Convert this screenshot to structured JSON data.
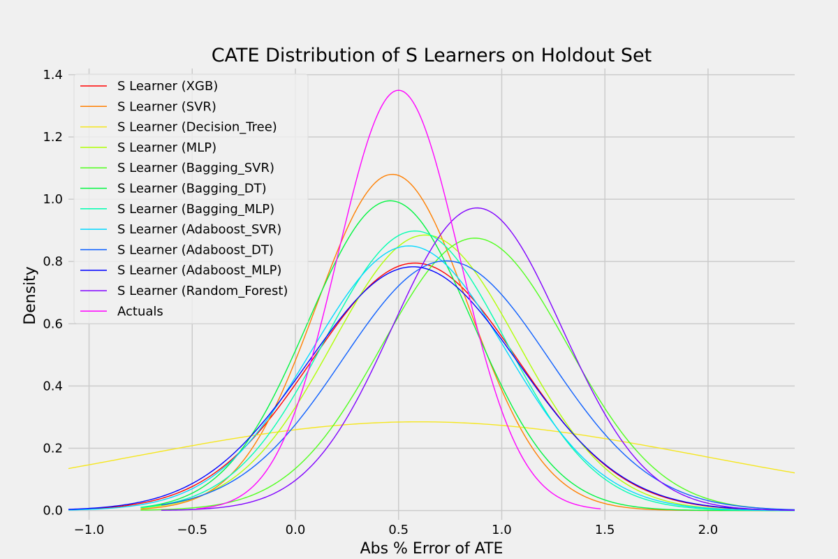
{
  "chart_data": {
    "type": "line",
    "title": "CATE Distribution of S Learners on Holdout Set",
    "xlabel": "Abs % Error of ATE",
    "ylabel": "Density",
    "xlim": [
      -1.1,
      2.42
    ],
    "ylim": [
      -0.03,
      1.42
    ],
    "xticks": [
      -1.0,
      -0.5,
      0.0,
      0.5,
      1.0,
      1.5,
      2.0
    ],
    "xtick_labels": [
      "−1.0",
      "−0.5",
      "0.0",
      "0.5",
      "1.0",
      "1.5",
      "2.0"
    ],
    "yticks": [
      0.0,
      0.2,
      0.4,
      0.6,
      0.8,
      1.0,
      1.2,
      1.4
    ],
    "ytick_labels": [
      "0.0",
      "0.2",
      "0.4",
      "0.6",
      "0.8",
      "1.0",
      "1.2",
      "1.4"
    ],
    "grid": true,
    "legend_position": "upper-left",
    "series": [
      {
        "name": "S Learner (XGB)",
        "color": "#ff0000",
        "curve": "gaussian",
        "mean": 0.58,
        "std": 0.5,
        "peak": 0.795,
        "x_range": [
          -1.1,
          2.42
        ]
      },
      {
        "name": "S Learner (SVR)",
        "color": "#ff7f00",
        "curve": "gaussian",
        "mean": 0.47,
        "std": 0.37,
        "peak": 1.08,
        "x_range": [
          -0.75,
          2.42
        ]
      },
      {
        "name": "S Learner (Decision_Tree)",
        "color": "#f5e61e",
        "curve": "gaussian",
        "mean": 0.6,
        "std": 1.39,
        "peak": 0.285,
        "x_range": [
          -1.1,
          2.42
        ]
      },
      {
        "name": "S Learner (MLP)",
        "color": "#b0ff05",
        "curve": "gaussian",
        "mean": 0.63,
        "std": 0.45,
        "peak": 0.885,
        "x_range": [
          -0.75,
          2.42
        ]
      },
      {
        "name": "S Learner (Bagging_SVR)",
        "color": "#4fff1c",
        "curve": "gaussian",
        "mean": 0.87,
        "std": 0.45,
        "peak": 0.875,
        "x_range": [
          -0.75,
          2.42
        ]
      },
      {
        "name": "S Learner (Bagging_DT)",
        "color": "#00f540",
        "curve": "gaussian",
        "mean": 0.46,
        "std": 0.4,
        "peak": 0.995,
        "x_range": [
          -0.75,
          2.42
        ]
      },
      {
        "name": "S Learner (Bagging_MLP)",
        "color": "#00ffb0",
        "curve": "gaussian",
        "mean": 0.58,
        "std": 0.44,
        "peak": 0.898,
        "x_range": [
          -0.75,
          2.42
        ]
      },
      {
        "name": "S Learner (Adaboost_SVR)",
        "color": "#00d8ff",
        "curve": "gaussian",
        "mean": 0.55,
        "std": 0.47,
        "peak": 0.85,
        "x_range": [
          -1.1,
          2.42
        ]
      },
      {
        "name": "S Learner (Adaboost_DT)",
        "color": "#0d5fff",
        "curve": "gaussian",
        "mean": 0.73,
        "std": 0.5,
        "peak": 0.802,
        "x_range": [
          -0.65,
          2.42
        ]
      },
      {
        "name": "S Learner (Adaboost_MLP)",
        "color": "#0000ff",
        "curve": "gaussian",
        "mean": 0.57,
        "std": 0.51,
        "peak": 0.783,
        "x_range": [
          -1.1,
          2.42
        ]
      },
      {
        "name": "S Learner (Random_Forest)",
        "color": "#8000ff",
        "curve": "gaussian",
        "mean": 0.88,
        "std": 0.41,
        "peak": 0.972,
        "x_range": [
          -0.65,
          2.42
        ]
      },
      {
        "name": "Actuals",
        "color": "#ff00ff",
        "curve": "gaussian",
        "mean": 0.5,
        "std": 0.295,
        "peak": 1.35,
        "x_range": [
          -0.48,
          1.48
        ]
      }
    ]
  }
}
